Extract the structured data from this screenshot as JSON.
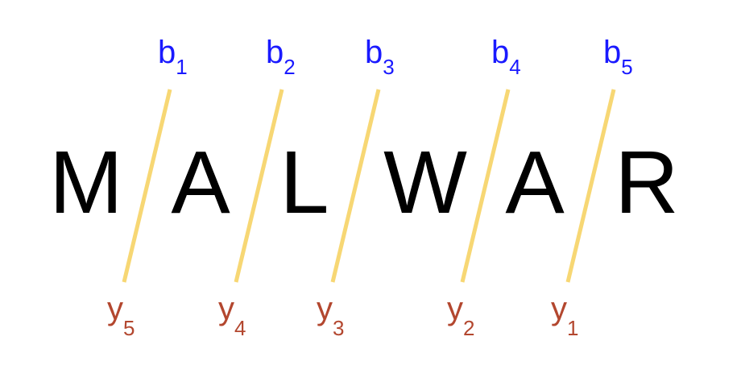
{
  "word": {
    "letters": [
      "M",
      "A",
      "L",
      "W",
      "A",
      "R"
    ]
  },
  "boundaries": [
    {
      "top_label": "b",
      "top_index": "1",
      "bottom_label": "y",
      "bottom_index": "5"
    },
    {
      "top_label": "b",
      "top_index": "2",
      "bottom_label": "y",
      "bottom_index": "4"
    },
    {
      "top_label": "b",
      "top_index": "3",
      "bottom_label": "y",
      "bottom_index": "3"
    },
    {
      "top_label": "b",
      "top_index": "4",
      "bottom_label": "y",
      "bottom_index": "2"
    },
    {
      "top_label": "b",
      "top_index": "5",
      "bottom_label": "y",
      "bottom_index": "1"
    }
  ],
  "colors": {
    "letter": "#000000",
    "top_label": "#1a1aff",
    "bottom_label": "#b3472f",
    "divider": "#f7d774"
  }
}
